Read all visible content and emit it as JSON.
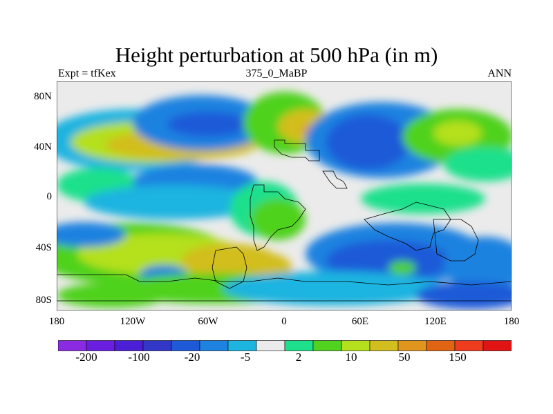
{
  "title": "Height perturbation at 500 hPa (in m)",
  "subtitle_left": "Expt = tfKex",
  "subtitle_center": "375_0_MaBP",
  "subtitle_right": "ANN",
  "y_axis_labels": [
    "80N",
    "40N",
    "0",
    "40S",
    "80S"
  ],
  "x_axis_labels": [
    "180",
    "120W",
    "60W",
    "0",
    "60E",
    "120E",
    "180"
  ],
  "colorbar": {
    "colors": [
      "#8a2be2",
      "#6a1ee0",
      "#4b1fd6",
      "#3237c8",
      "#1e5ad8",
      "#1e82e0",
      "#1eb4e0",
      "#ebebeb",
      "#1ee08c",
      "#50d21e",
      "#b4e01e",
      "#d2be1e",
      "#e0961e",
      "#e06414",
      "#f03c1e",
      "#e01414"
    ],
    "labels": [
      "-200",
      "-100",
      "-20",
      "-5",
      "2",
      "10",
      "50",
      "150"
    ]
  },
  "map": {
    "projection": "cylindrical equidistant",
    "lon_range": [
      -180,
      180
    ],
    "lat_range": [
      -90,
      90
    ],
    "contour_field": "height perturbation at 500 hPa",
    "units": "m"
  }
}
